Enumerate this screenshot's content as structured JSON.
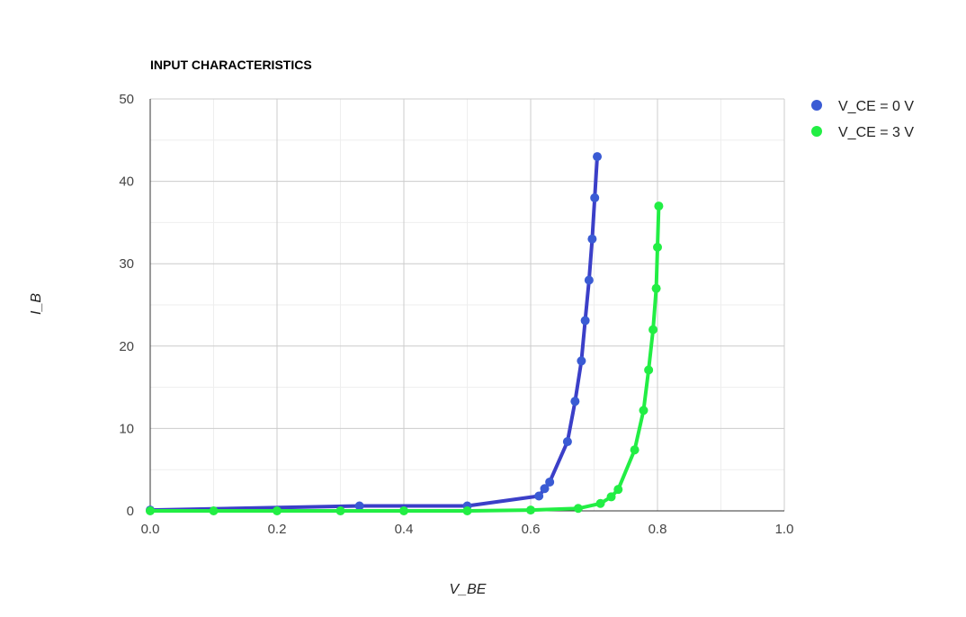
{
  "chart_data": {
    "type": "line",
    "title": "INPUT CHARACTERISTICS",
    "xlabel": "V_BE",
    "ylabel": "I_B",
    "xlim": [
      0,
      1
    ],
    "ylim": [
      0,
      50
    ],
    "x_ticks": [
      "0.0",
      "0.2",
      "0.4",
      "0.6",
      "0.8",
      "1.0"
    ],
    "y_ticks": [
      "0",
      "10",
      "20",
      "30",
      "40",
      "50"
    ],
    "grid": true,
    "legend_position": "right",
    "series": [
      {
        "name": "V_CE = 0 V",
        "color": "#3b3fc8",
        "marker_color": "#3a5bd4",
        "points": [
          [
            0,
            0.1
          ],
          [
            0.33,
            0.6
          ],
          [
            0.5,
            0.6
          ],
          [
            0.613,
            1.8
          ],
          [
            0.622,
            2.7
          ],
          [
            0.63,
            3.5
          ],
          [
            0.658,
            8.4
          ],
          [
            0.67,
            13.3
          ],
          [
            0.68,
            18.2
          ],
          [
            0.686,
            23.1
          ],
          [
            0.692,
            28.0
          ],
          [
            0.697,
            33.0
          ],
          [
            0.701,
            38.0
          ],
          [
            0.705,
            43.0
          ]
        ]
      },
      {
        "name": "V_CE = 3 V",
        "color": "#22ee44",
        "marker_color": "#22ee44",
        "points": [
          [
            0,
            0
          ],
          [
            0.1,
            0
          ],
          [
            0.2,
            0
          ],
          [
            0.3,
            0
          ],
          [
            0.4,
            0
          ],
          [
            0.5,
            0
          ],
          [
            0.6,
            0.1
          ],
          [
            0.675,
            0.3
          ],
          [
            0.71,
            0.9
          ],
          [
            0.727,
            1.7
          ],
          [
            0.738,
            2.6
          ],
          [
            0.764,
            7.4
          ],
          [
            0.778,
            12.2
          ],
          [
            0.786,
            17.1
          ],
          [
            0.793,
            22.0
          ],
          [
            0.798,
            27.0
          ],
          [
            0.8,
            32.0
          ],
          [
            0.802,
            37.0
          ]
        ]
      }
    ]
  }
}
